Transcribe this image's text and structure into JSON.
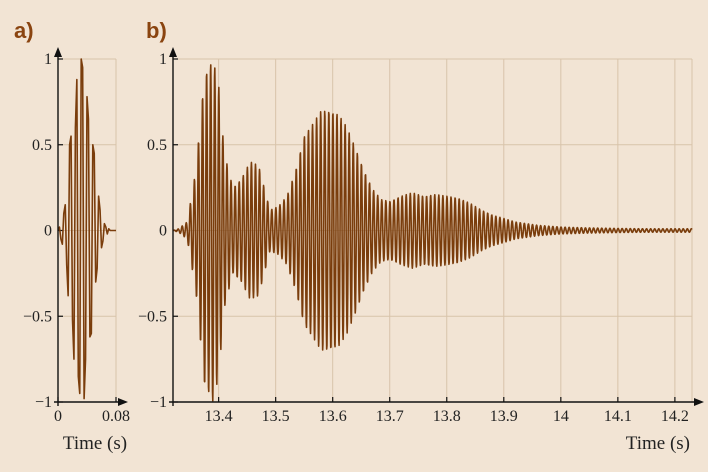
{
  "chart_data": [
    {
      "panel": "a)",
      "type": "line",
      "xlabel": "Time (s)",
      "ylabel": "",
      "xlim": [
        0,
        0.08
      ],
      "ylim": [
        -1,
        1
      ],
      "xticks": [
        0,
        0.08
      ],
      "xtick_labels": [
        "0",
        "0.08"
      ],
      "yticks": [
        -1,
        -0.5,
        0,
        0.5,
        1
      ],
      "ytick_labels": [
        "−1",
        "−0.5",
        "0",
        "0.5",
        "1"
      ],
      "grid": true,
      "series": [
        {
          "x": [
            0,
            0.002,
            0.004,
            0.006,
            0.008,
            0.01,
            0.012,
            0.014,
            0.016,
            0.018,
            0.02,
            0.022,
            0.024,
            0.026,
            0.028,
            0.03,
            0.032,
            0.034,
            0.036,
            0.038,
            0.04,
            0.042,
            0.044,
            0.046,
            0.048,
            0.05,
            0.052,
            0.054,
            0.056,
            0.058,
            0.06,
            0.062,
            0.064,
            0.066,
            0.068,
            0.07,
            0.072,
            0.074,
            0.076,
            0.078,
            0.08
          ],
          "y": [
            0,
            0.02,
            -0.05,
            -0.08,
            0.1,
            0.15,
            -0.2,
            -0.38,
            0.5,
            0.55,
            -0.52,
            -0.75,
            0.6,
            0.88,
            -0.85,
            -0.95,
            1.0,
            0.95,
            -0.98,
            -0.75,
            0.78,
            0.65,
            -0.62,
            -0.6,
            0.5,
            0.45,
            -0.3,
            -0.22,
            0.2,
            0.12,
            -0.1,
            -0.06,
            0.04,
            0.02,
            -0.02,
            0.01,
            0,
            0,
            0,
            0,
            0
          ]
        }
      ]
    },
    {
      "panel": "b)",
      "type": "line",
      "xlabel": "Time (s)",
      "ylabel": "",
      "xlim": [
        13.32,
        14.23
      ],
      "ylim": [
        -1,
        1
      ],
      "xticks": [
        13.4,
        13.5,
        13.6,
        13.7,
        13.8,
        13.9,
        14.0,
        14.1,
        14.2
      ],
      "xtick_labels": [
        "13.4",
        "13.5",
        "13.6",
        "13.7",
        "13.8",
        "13.9",
        "14",
        "14.1",
        "14.2"
      ],
      "yticks": [
        -1,
        -0.5,
        0,
        0.5,
        1
      ],
      "ytick_labels": [
        "−1",
        "−0.5",
        "0",
        "0.5",
        "1"
      ],
      "grid": true,
      "series": [
        {
          "x": [
            13.32,
            13.33,
            13.345,
            13.36,
            13.375,
            13.39,
            13.4,
            13.41,
            13.425,
            13.44,
            13.455,
            13.47,
            13.48,
            13.49,
            13.505,
            13.52,
            13.535,
            13.55,
            13.565,
            13.58,
            13.595,
            13.61,
            13.625,
            13.64,
            13.655,
            13.67,
            13.685,
            13.7,
            13.72,
            13.74,
            13.76,
            13.78,
            13.8,
            13.82,
            13.84,
            13.86,
            13.88,
            13.9,
            13.92,
            13.94,
            13.96,
            13.98,
            14.0,
            14.05,
            14.1,
            14.15,
            14.2,
            14.23
          ],
          "y": [
            0,
            0.01,
            0.05,
            0.35,
            0.9,
            1.0,
            0.85,
            0.45,
            0.25,
            0.3,
            0.4,
            0.38,
            0.25,
            0.12,
            0.14,
            0.2,
            0.35,
            0.55,
            0.62,
            0.7,
            0.7,
            0.68,
            0.6,
            0.48,
            0.35,
            0.24,
            0.18,
            0.17,
            0.2,
            0.22,
            0.2,
            0.21,
            0.2,
            0.19,
            0.16,
            0.12,
            0.09,
            0.07,
            0.05,
            0.04,
            0.03,
            0.025,
            0.02,
            0.015,
            0.012,
            0.01,
            0.01,
            0.01
          ],
          "note": "envelope"
        }
      ]
    }
  ]
}
